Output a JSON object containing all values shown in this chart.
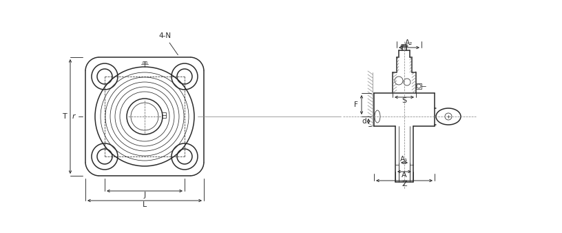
{
  "bg_color": "#ffffff",
  "line_color": "#2a2a2a",
  "dim_color": "#2a2a2a",
  "fig_width": 8.16,
  "fig_height": 3.38,
  "labels": {
    "four_N": "4-N",
    "T": "T",
    "r": "r",
    "J": "J",
    "L": "L",
    "A2": "A₂",
    "S": "S",
    "F": "F",
    "d": "d",
    "A1": "A₁",
    "A": "A",
    "Z": "Z"
  }
}
